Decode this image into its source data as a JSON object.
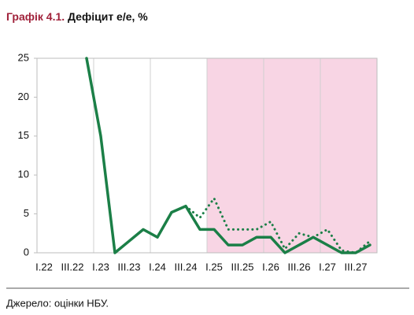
{
  "chart_data": {
    "type": "line",
    "title_prefix": "Графік 4.1.",
    "title": "Дефіцит е/е, %",
    "source": "Джерело: оцінки НБУ.",
    "categories": [
      "I.22",
      null,
      "III.22",
      null,
      "I.23",
      null,
      "III.23",
      null,
      "I.24",
      null,
      "III.24",
      null,
      "I.25",
      null,
      "III.25",
      null,
      "I.26",
      null,
      "III.26",
      null,
      "I.27",
      null,
      "III.27",
      null
    ],
    "series": [
      {
        "color": "#1b7f47",
        "style": "solid",
        "values": [
          null,
          null,
          null,
          25,
          15,
          0,
          1.5,
          3,
          2,
          5.2,
          6,
          3,
          3,
          1,
          1,
          2,
          2,
          0,
          1,
          2,
          1,
          0,
          0,
          1
        ]
      },
      {
        "color": "#1b7f47",
        "style": "dotted",
        "values": [
          null,
          null,
          null,
          null,
          null,
          null,
          null,
          null,
          null,
          null,
          6,
          4.5,
          7,
          3,
          3,
          3,
          4,
          0.5,
          2.5,
          2,
          3,
          0.3,
          0,
          1.5
        ]
      }
    ],
    "shaded_from": 12,
    "shade_color": "#f8d5e4",
    "ylim": [
      0,
      25
    ],
    "yticks": [
      0,
      5,
      10,
      15,
      20,
      25
    ]
  }
}
